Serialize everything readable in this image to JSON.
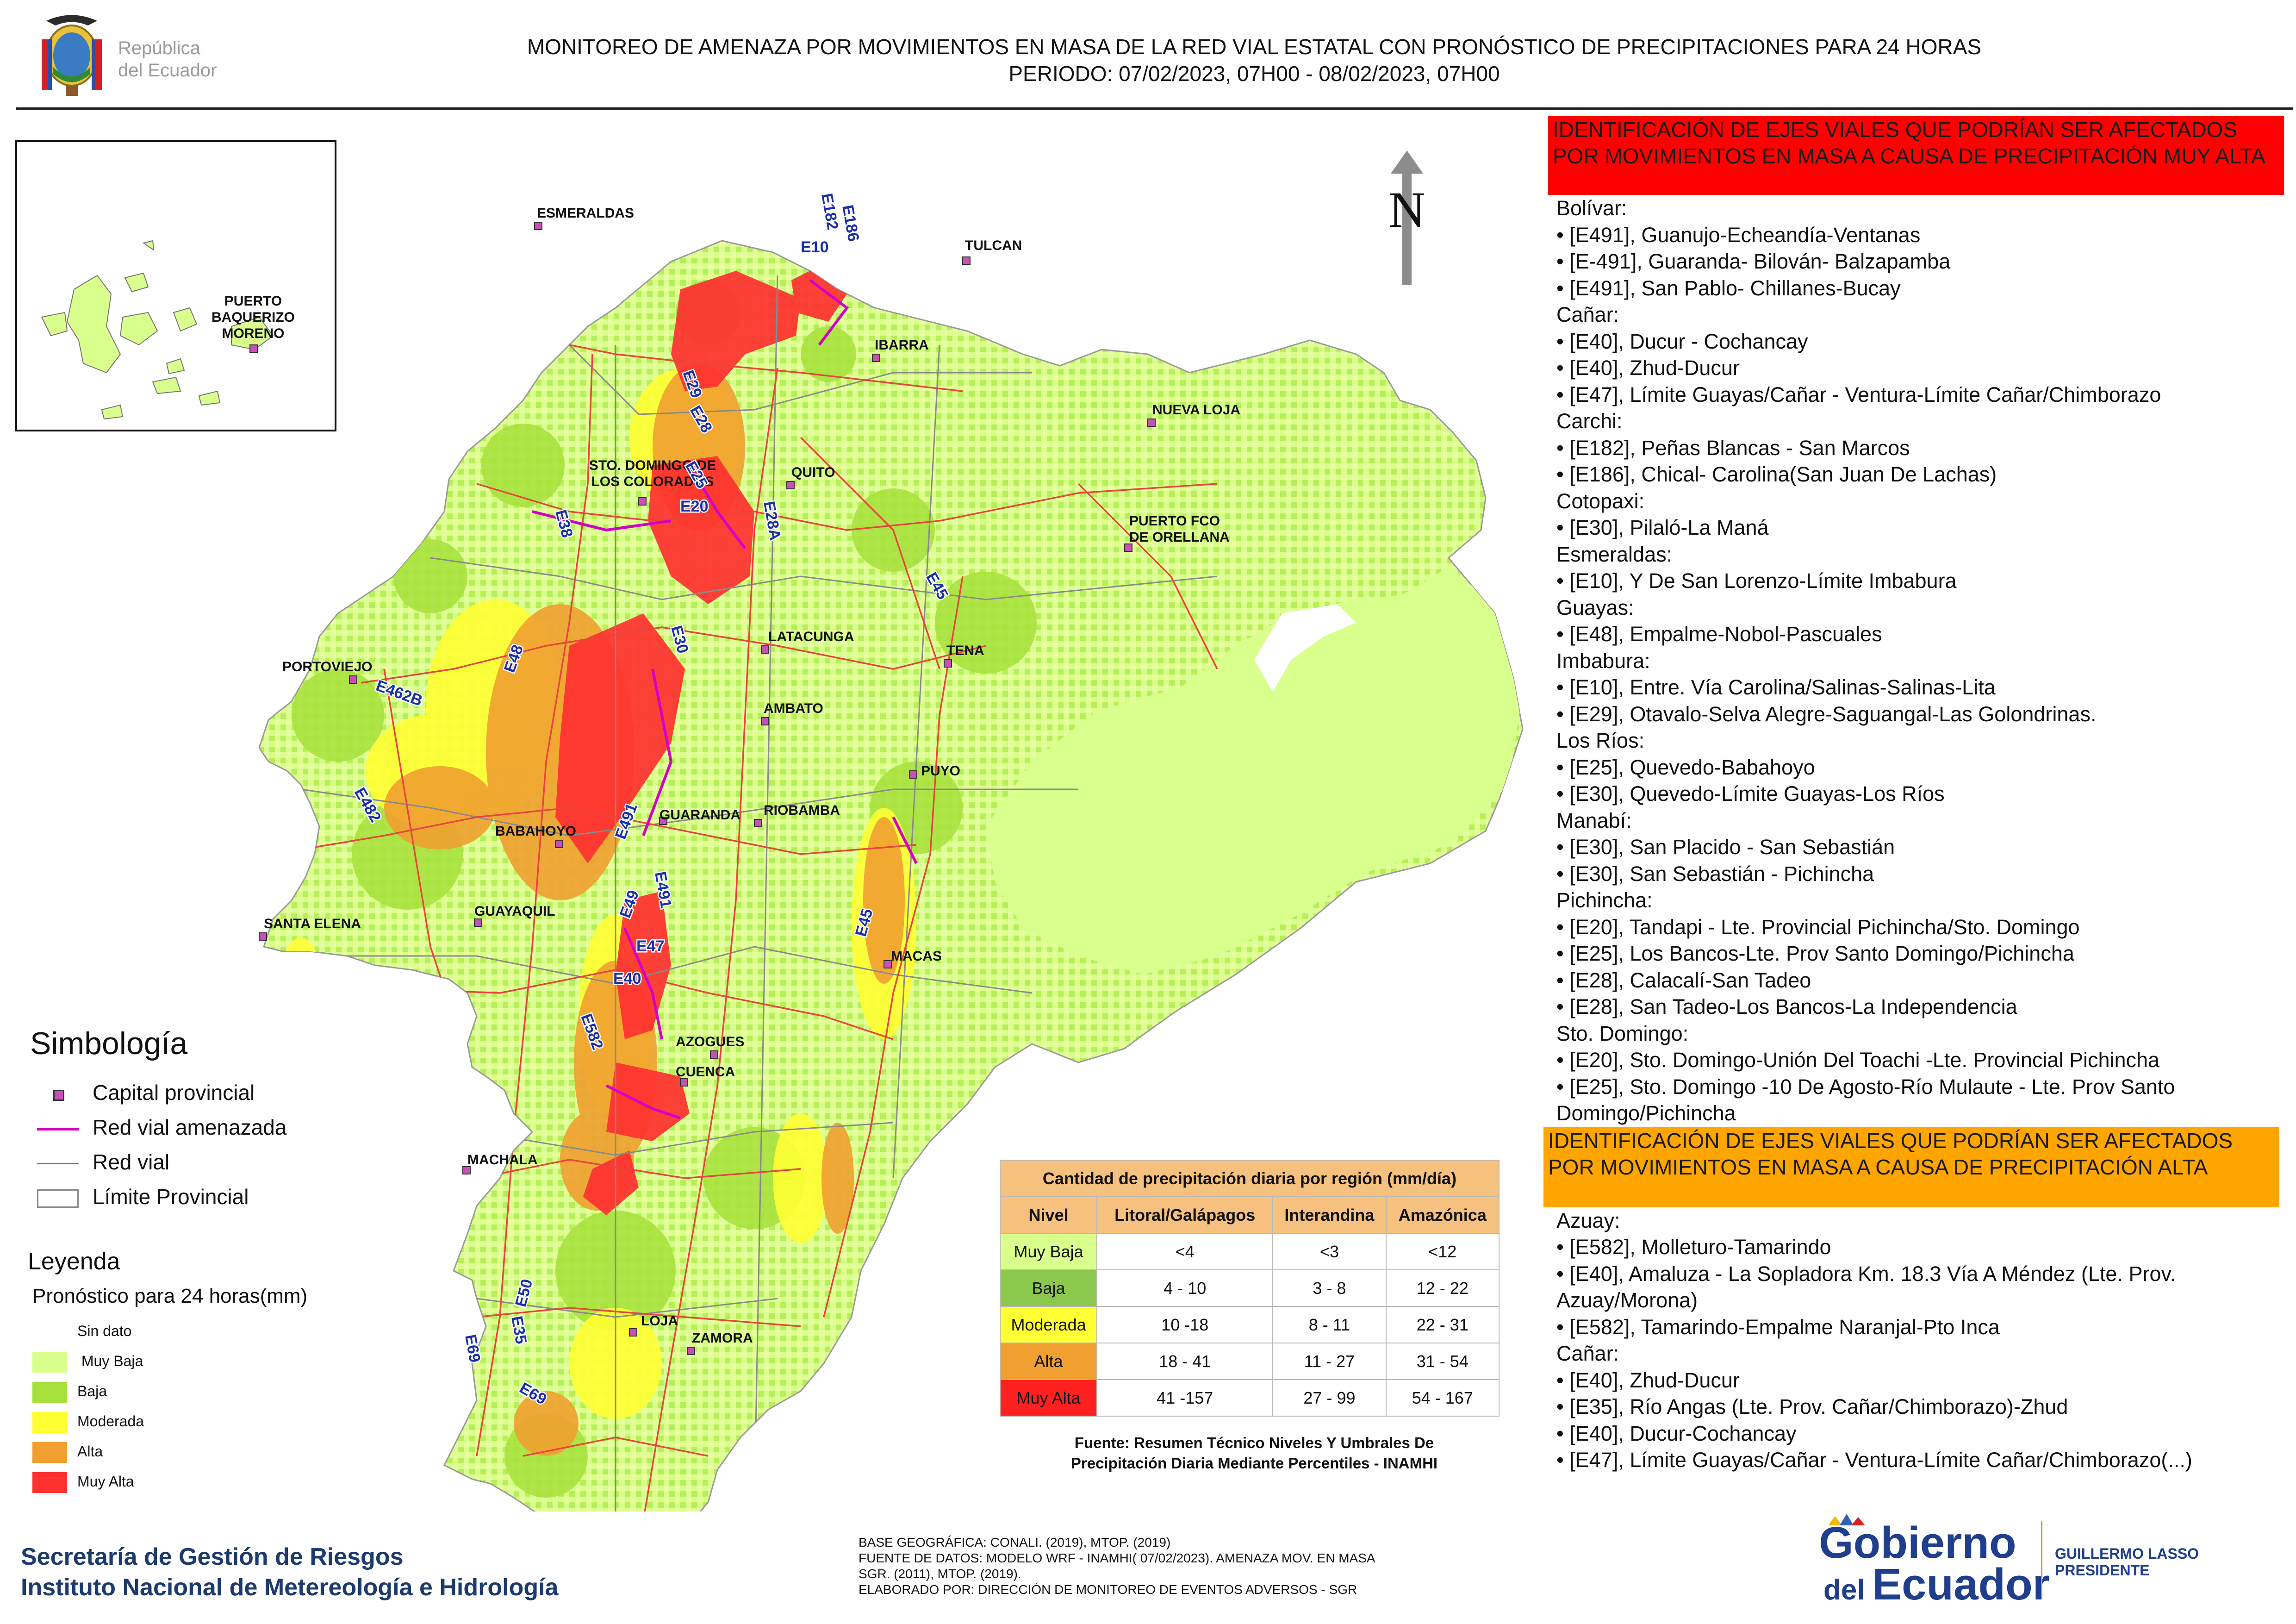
{
  "header": {
    "logo_text_line1": "República",
    "logo_text_line2": "del Ecuador",
    "title_line1": "MONITOREO DE AMENAZA POR MOVIMIENTOS EN MASA DE LA RED VIAL  ESTATAL  CON PRONÓSTICO  DE  PRECIPITACIONES PARA 24 HORAS",
    "title_line2": "PERIODO: 07/02/2023, 07H00 - 08/02/2023, 07H00"
  },
  "map": {
    "north_label": "N",
    "inset_city": [
      "PUERTO",
      "BAQUERIZO",
      "MORENO"
    ],
    "cities": [
      {
        "name": "ESMERALDAS"
      },
      {
        "name": "TULCAN"
      },
      {
        "name": "IBARRA"
      },
      {
        "name": "NUEVA LOJA"
      },
      {
        "name": "STO. DOMINGO DE"
      },
      {
        "name": "LOS COLORADOS"
      },
      {
        "name": "QUITO"
      },
      {
        "name": "PUERTO FCO"
      },
      {
        "name": "DE ORELLANA"
      },
      {
        "name": "PORTOVIEJO"
      },
      {
        "name": "LATACUNGA"
      },
      {
        "name": "TENA"
      },
      {
        "name": "AMBATO"
      },
      {
        "name": "PUYO"
      },
      {
        "name": "GUARANDA"
      },
      {
        "name": "RIOBAMBA"
      },
      {
        "name": "BABAHOYO"
      },
      {
        "name": "SANTA ELENA"
      },
      {
        "name": "GUAYAQUIL"
      },
      {
        "name": "MACAS"
      },
      {
        "name": "AZOGUES"
      },
      {
        "name": "CUENCA"
      },
      {
        "name": "MACHALA"
      },
      {
        "name": "LOJA"
      },
      {
        "name": "ZAMORA"
      }
    ],
    "roads": [
      "E182",
      "E186",
      "E10",
      "E29",
      "E28",
      "E25",
      "E20",
      "E28A",
      "E38",
      "E45",
      "E30",
      "E462B",
      "E48",
      "E482",
      "E491",
      "E491",
      "E47",
      "E49",
      "E40",
      "E582",
      "E45",
      "E50",
      "E35",
      "E69",
      "E69"
    ]
  },
  "simbologia": {
    "title": "Simbología",
    "items": [
      {
        "label": "Capital provincial",
        "icon": "capital-square-icon"
      },
      {
        "label": "Red vial amenazada",
        "color": "#d400c8"
      },
      {
        "label": "Red vial",
        "color": "#e8453c"
      },
      {
        "label": "Límite Provincial",
        "color": "#8a8a8a"
      }
    ]
  },
  "leyenda": {
    "title": "Leyenda",
    "subtitle": "Pronóstico para 24 horas(mm)",
    "items": [
      {
        "label": "Sin dato",
        "color": "#ffffff"
      },
      {
        "label": " Muy Baja",
        "color": "#d9ff8c"
      },
      {
        "label": "Baja",
        "color": "#a6e03a"
      },
      {
        "label": "Moderada",
        "color": "#ffff33"
      },
      {
        "label": "Alta",
        "color": "#f0a030"
      },
      {
        "label": "Muy Alta",
        "color": "#ff3030"
      }
    ]
  },
  "table": {
    "title": "Cantidad de precipitación diaria por región (mm/día)",
    "headers": [
      "Nivel",
      "Litoral/Galápagos",
      "Interandina",
      "Amazónica"
    ],
    "rows": [
      {
        "nivel": "Muy Baja",
        "color": "#d9ff8c",
        "litoral": "<4",
        "interandina": "<3",
        "amazonica": "<12"
      },
      {
        "nivel": "Baja",
        "color": "#8cc84b",
        "litoral": "4 - 10",
        "interandina": "3 - 8",
        "amazonica": "12 - 22"
      },
      {
        "nivel": "Moderada",
        "color": "#ffff33",
        "litoral": "10 -18",
        "interandina": "8 - 11",
        "amazonica": "22 - 31"
      },
      {
        "nivel": "Alta",
        "color": "#f0a030",
        "litoral": "18 - 41",
        "interandina": "11 - 27",
        "amazonica": "31 - 54"
      },
      {
        "nivel": "Muy Alta",
        "color": "#ff2020",
        "litoral": "41 -157",
        "interandina": "27 - 99",
        "amazonica": "54 - 167"
      }
    ],
    "source_line1": "Fuente: Resumen Técnico Niveles Y Umbrales De",
    "source_line2": "Precipitación Diaria Mediante Percentiles - INAMHI"
  },
  "footer": {
    "inst_line1": "Secretaría de Gestión de Riesgos",
    "inst_line2": "Instituto Nacional de Metereología e Hidrología",
    "src_line1": "BASE GEOGRÁFICA: CONALI. (2019), MTOP. (2019)",
    "src_line2": "FUENTE DE DATOS: MODELO WRF - INAMHI( 07/02/2023).  AMENAZA MOV. EN MASA",
    "src_line3": "SGR. (2011), MTOP. (2019).",
    "src_line4": "ELABORADO POR: DIRECCIÓN DE MONITOREO DE EVENTOS ADVERSOS - SGR",
    "gob_line1": "Gobierno",
    "gob_line2": "del",
    "gob_line3": "Ecuador",
    "gob_person": "GUILLERMO LASSO",
    "gob_role": "PRESIDENTE"
  },
  "right_panel": {
    "muy_alta_banner": "IDENTIFICACIÓN DE EJES VIALES QUE PODRÍAN SER AFECTADOS POR MOVIMIENTOS EN MASA A CAUSA DE PRECIPITACIÓN MUY ALTA",
    "muy_alta_lines": [
      "Bolívar:",
      "• [E491], Guanujo-Echeandía-Ventanas",
      "• [E-491], Guaranda- Bilován- Balzapamba",
      "• [E491], San Pablo- Chillanes-Bucay",
      "Cañar:",
      "• [E40], Ducur - Cochancay",
      "• [E40], Zhud-Ducur",
      "• [E47], Límite Guayas/Cañar - Ventura-Límite Cañar/Chimborazo",
      "Carchi:",
      "• [E182], Peñas Blancas - San Marcos",
      "• [E186], Chical- Carolina(San Juan De Lachas)",
      "Cotopaxi:",
      "• [E30], Pilaló-La Maná",
      "Esmeraldas:",
      "• [E10], Y De San Lorenzo-Límite Imbabura",
      "Guayas:",
      "• [E48], Empalme-Nobol-Pascuales",
      "Imbabura:",
      "• [E10], Entre. Vía Carolina/Salinas-Salinas-Lita",
      "• [E29], Otavalo-Selva Alegre-Saguangal-Las Golondrinas.",
      "Los Ríos:",
      "• [E25], Quevedo-Babahoyo",
      "• [E30], Quevedo-Límite Guayas-Los Ríos",
      "Manabí:",
      "• [E30], San Placido - San Sebastián",
      "• [E30], San Sebastián - Pichincha",
      "Pichincha:",
      "• [E20], Tandapi - Lte. Provincial Pichincha/Sto. Domingo",
      "• [E25], Los Bancos-Lte. Prov Santo Domingo/Pichincha",
      "• [E28], Calacalí-San Tadeo",
      "• [E28], San Tadeo-Los Bancos-La Independencia",
      "Sto. Domingo:",
      "• [E20], Sto. Domingo-Unión Del Toachi -Lte. Provincial Pichincha",
      "• [E25], Sto. Domingo -10 De Agosto-Río Mulaute - Lte. Prov Santo",
      "Domingo/Pichincha"
    ],
    "alta_banner": "IDENTIFICACIÓN DE EJES VIALES QUE PODRÍAN SER AFECTADOS POR MOVIMIENTOS EN MASA A CAUSA DE PRECIPITACIÓN  ALTA",
    "alta_lines": [
      "Azuay:",
      "• [E582], Molleturo-Tamarindo",
      "• [E40], Amaluza - La Sopladora Km. 18.3 Vía A Méndez (Lte. Prov.",
      "Azuay/Morona)",
      "• [E582], Tamarindo-Empalme Naranjal-Pto Inca",
      "Cañar:",
      "• [E40], Zhud-Ducur",
      "• [E35], Río Angas (Lte. Prov. Cañar/Chimborazo)-Zhud",
      "• [E40], Ducur-Cochancay",
      "• [E47], Límite Guayas/Cañar - Ventura-Límite Cañar/Chimborazo(...)"
    ]
  }
}
